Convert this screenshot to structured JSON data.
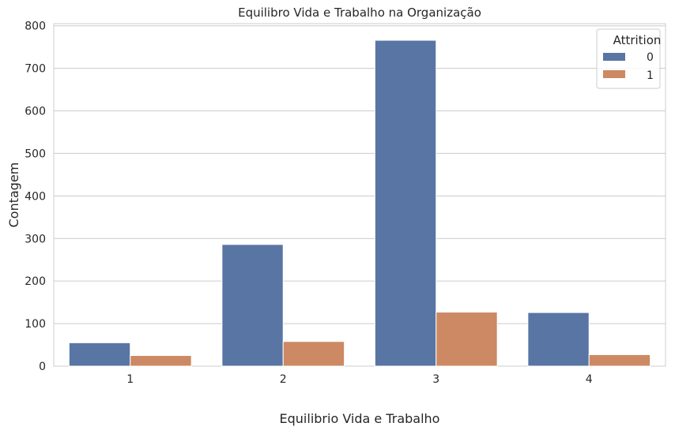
{
  "chart_data": {
    "type": "bar",
    "title": "Equilibro Vida e Trabalho na Organização",
    "xlabel": "Equilibrio Vida e Trabalho",
    "ylabel": "Contagem",
    "categories": [
      "1",
      "2",
      "3",
      "4"
    ],
    "ylim": [
      0,
      805
    ],
    "yticks": [
      0,
      100,
      200,
      300,
      400,
      500,
      600,
      700,
      800
    ],
    "grid": true,
    "legend": {
      "title": "Attrition",
      "placement": "top-right"
    },
    "series": [
      {
        "name": "0",
        "color": "#5975a4",
        "values": [
          55,
          286,
          766,
          126
        ]
      },
      {
        "name": "1",
        "color": "#cc8963",
        "values": [
          25,
          58,
          127,
          27
        ]
      }
    ]
  }
}
